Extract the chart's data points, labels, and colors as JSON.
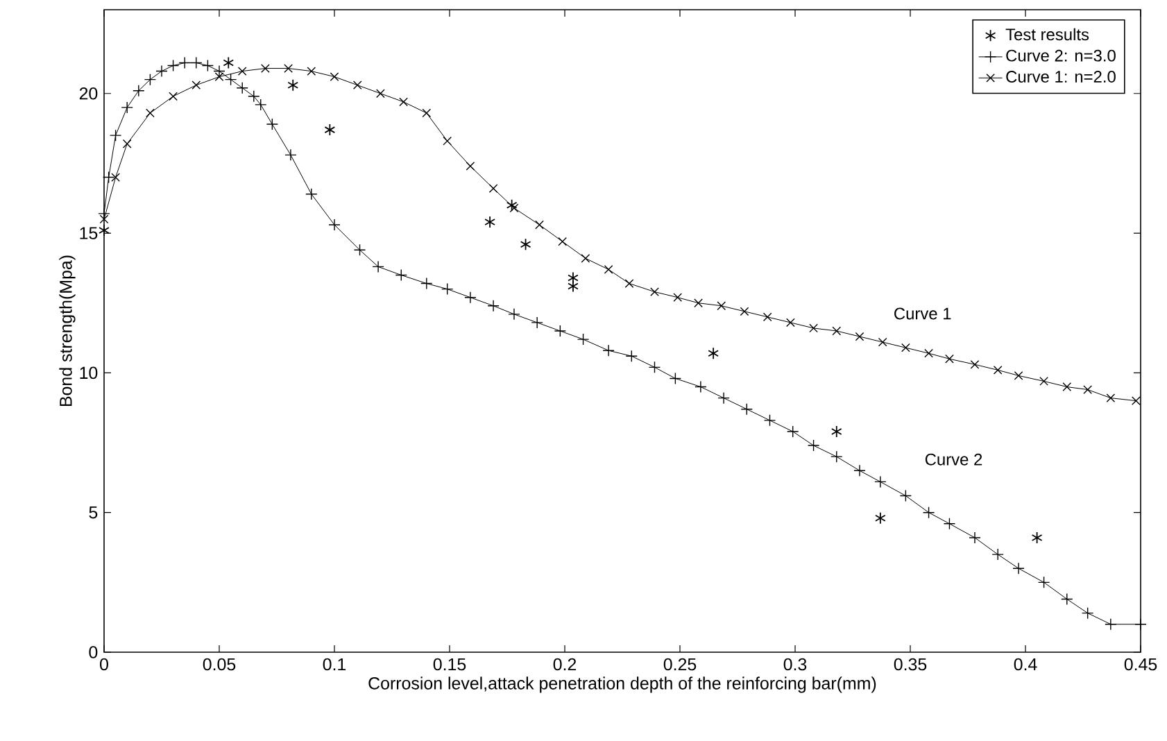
{
  "chart_data": {
    "type": "line",
    "xlabel": "Corrosion level,attack penetration depth of the reinforcing bar(mm)",
    "ylabel": "Bond strength(Mpa)",
    "xlim": [
      0,
      0.45
    ],
    "ylim": [
      0,
      23
    ],
    "xticks": [
      0,
      0.05,
      0.1,
      0.15,
      0.2,
      0.25,
      0.3,
      0.35,
      0.4,
      0.45
    ],
    "yticks": [
      0,
      5,
      10,
      15,
      20
    ],
    "grid": false,
    "legend": "top right",
    "series": [
      {
        "name": "Test results",
        "type": "scatter",
        "marker": "cross",
        "color": "#000000",
        "x": [
          0,
          0.054,
          0.082,
          0.098,
          0.1675,
          0.177,
          0.183,
          0.2036,
          0.2036,
          0.2645,
          0.318,
          0.337,
          0.405
        ],
        "values": [
          15.1,
          21.1,
          20.3,
          18.7,
          15.4,
          16.0,
          14.6,
          13.1,
          13.4,
          10.7,
          7.9,
          4.8,
          4.1
        ]
      },
      {
        "name": "Curve 2: n=3.0",
        "marker": "plus",
        "color": "#000000",
        "x": [
          0,
          0.002,
          0.005,
          0.01,
          0.015,
          0.02,
          0.025,
          0.03,
          0.035,
          0.04,
          0.045,
          0.05,
          0.055,
          0.06,
          0.065,
          0.068,
          0.073,
          0.081,
          0.09,
          0.1,
          0.111,
          0.119,
          0.129,
          0.14,
          0.149,
          0.159,
          0.169,
          0.178,
          0.188,
          0.198,
          0.208,
          0.219,
          0.229,
          0.239,
          0.248,
          0.259,
          0.269,
          0.279,
          0.289,
          0.299,
          0.308,
          0.318,
          0.328,
          0.337,
          0.348,
          0.358,
          0.367,
          0.378,
          0.388,
          0.397,
          0.408,
          0.418,
          0.427,
          0.437,
          0.45
        ],
        "values": [
          15.7,
          17.0,
          18.5,
          19.5,
          20.1,
          20.5,
          20.8,
          21.0,
          21.1,
          21.1,
          21.0,
          20.8,
          20.5,
          20.2,
          19.9,
          19.6,
          18.9,
          17.8,
          16.4,
          15.3,
          14.4,
          13.8,
          13.5,
          13.2,
          13.0,
          12.7,
          12.4,
          12.1,
          11.8,
          11.5,
          11.2,
          10.8,
          10.6,
          10.2,
          9.8,
          9.5,
          9.1,
          8.7,
          8.3,
          7.9,
          7.4,
          7.0,
          6.5,
          6.1,
          5.6,
          5.0,
          4.6,
          4.1,
          3.5,
          3.0,
          2.5,
          1.9,
          1.4,
          1.0,
          1.0
        ]
      },
      {
        "name": "Curve 1: n=2.0",
        "marker": "x",
        "color": "#000000",
        "x": [
          0,
          0.005,
          0.01,
          0.02,
          0.03,
          0.04,
          0.05,
          0.06,
          0.07,
          0.08,
          0.09,
          0.1,
          0.11,
          0.12,
          0.13,
          0.14,
          0.149,
          0.159,
          0.169,
          0.178,
          0.189,
          0.199,
          0.209,
          0.219,
          0.228,
          0.239,
          0.249,
          0.258,
          0.268,
          0.278,
          0.288,
          0.298,
          0.308,
          0.318,
          0.328,
          0.338,
          0.348,
          0.358,
          0.367,
          0.378,
          0.388,
          0.397,
          0.408,
          0.418,
          0.427,
          0.437,
          0.448
        ],
        "values": [
          15.5,
          17.0,
          18.2,
          19.3,
          19.9,
          20.3,
          20.6,
          20.8,
          20.9,
          20.9,
          20.8,
          20.6,
          20.3,
          20.0,
          19.7,
          19.3,
          18.3,
          17.4,
          16.6,
          15.9,
          15.3,
          14.7,
          14.1,
          13.7,
          13.2,
          12.9,
          12.7,
          12.5,
          12.4,
          12.2,
          12.0,
          11.8,
          11.6,
          11.5,
          11.3,
          11.1,
          10.9,
          10.7,
          10.5,
          10.3,
          10.1,
          9.9,
          9.7,
          9.5,
          9.4,
          9.1,
          9.0
        ]
      }
    ],
    "annotations": [
      "Curve 1",
      "Curve 2"
    ]
  }
}
